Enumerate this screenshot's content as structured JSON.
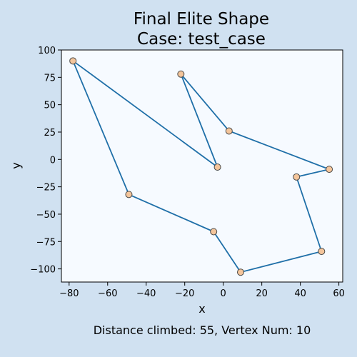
{
  "chart_data": {
    "type": "line",
    "title": [
      "Final Elite Shape",
      "Case: test_case"
    ],
    "xlabel": "x",
    "ylabel": "y",
    "xlim": [
      -84,
      62
    ],
    "ylim": [
      -112,
      100
    ],
    "xticks": [
      -80,
      -60,
      -40,
      -20,
      0,
      20,
      40,
      60
    ],
    "yticks": [
      -100,
      -75,
      -50,
      -25,
      0,
      25,
      50,
      75,
      100
    ],
    "xtick_labels": [
      "−80",
      "−60",
      "−40",
      "−20",
      "0",
      "20",
      "40",
      "60"
    ],
    "ytick_labels": [
      "−100",
      "−75",
      "−50",
      "−25",
      "0",
      "25",
      "50",
      "75",
      "100"
    ],
    "grid": false,
    "closed_polygon": true,
    "series": [
      {
        "x": [
          -78,
          -3,
          -22,
          3,
          55,
          38,
          51,
          9,
          -5,
          -49
        ],
        "y": [
          90,
          -7,
          78,
          26,
          -9,
          -16,
          -84,
          -103,
          -66,
          -32
        ]
      }
    ],
    "colors": {
      "line": "#1f6fa8",
      "marker_fill": "#f4c59b",
      "marker_edge": "#4a4a4a",
      "plot_bg": "#f6faff",
      "figure_bg": "#d0e1f1"
    },
    "caption": "Distance climbed: 55, Vertex Num: 10"
  }
}
